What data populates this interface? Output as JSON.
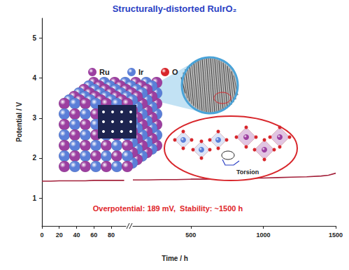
{
  "chart_data": [
    {
      "type": "line",
      "title": "Structurally-distorted RuIrO₂",
      "ylabel": "Potential / V",
      "x": [
        0,
        10,
        20,
        30,
        40,
        50,
        60,
        70,
        80,
        90,
        95
      ],
      "series": [
        {
          "name": "RuIrO₂",
          "color": "#a3203a",
          "line_style": "solid",
          "marker": "none",
          "values": [
            1.42,
            1.42,
            1.43,
            1.43,
            1.43,
            1.43,
            1.44,
            1.44,
            1.44,
            1.44,
            1.44
          ]
        }
      ],
      "xlim": [
        0,
        97
      ],
      "xticks": [
        0,
        20,
        40,
        60,
        80
      ],
      "ylim": [
        0.3,
        5.5
      ],
      "yticks": [
        1,
        2,
        3,
        4,
        5
      ],
      "grid": false,
      "legend_items": [
        {
          "label": "Ru",
          "color": "#9c3fa0"
        },
        {
          "label": "Ir",
          "color": "#5b7fd8"
        },
        {
          "label": "O",
          "color": "#d8262b"
        }
      ],
      "annotations": [
        {
          "text": "Overpotential: 189 mV,  Stability: ~1500 h",
          "color": "#e0262b"
        },
        {
          "text": "Torsion",
          "color": "#222222"
        }
      ]
    },
    {
      "type": "line",
      "xlabel": "Time / h",
      "x": [
        100,
        200,
        300,
        400,
        500,
        600,
        700,
        800,
        900,
        1000,
        1100,
        1200,
        1300,
        1400,
        1450,
        1500
      ],
      "series": [
        {
          "name": "RuIrO₂",
          "color": "#a3203a",
          "line_style": "solid",
          "marker": "none",
          "values": [
            1.45,
            1.45,
            1.46,
            1.46,
            1.47,
            1.47,
            1.48,
            1.49,
            1.49,
            1.5,
            1.51,
            1.52,
            1.53,
            1.55,
            1.57,
            1.62
          ]
        }
      ],
      "xlim": [
        100,
        1500
      ],
      "xticks": [
        500,
        1000,
        1500
      ],
      "ylim": [
        0.3,
        5.5
      ],
      "yticks": [
        1,
        2,
        3,
        4,
        5
      ],
      "grid": false
    }
  ]
}
